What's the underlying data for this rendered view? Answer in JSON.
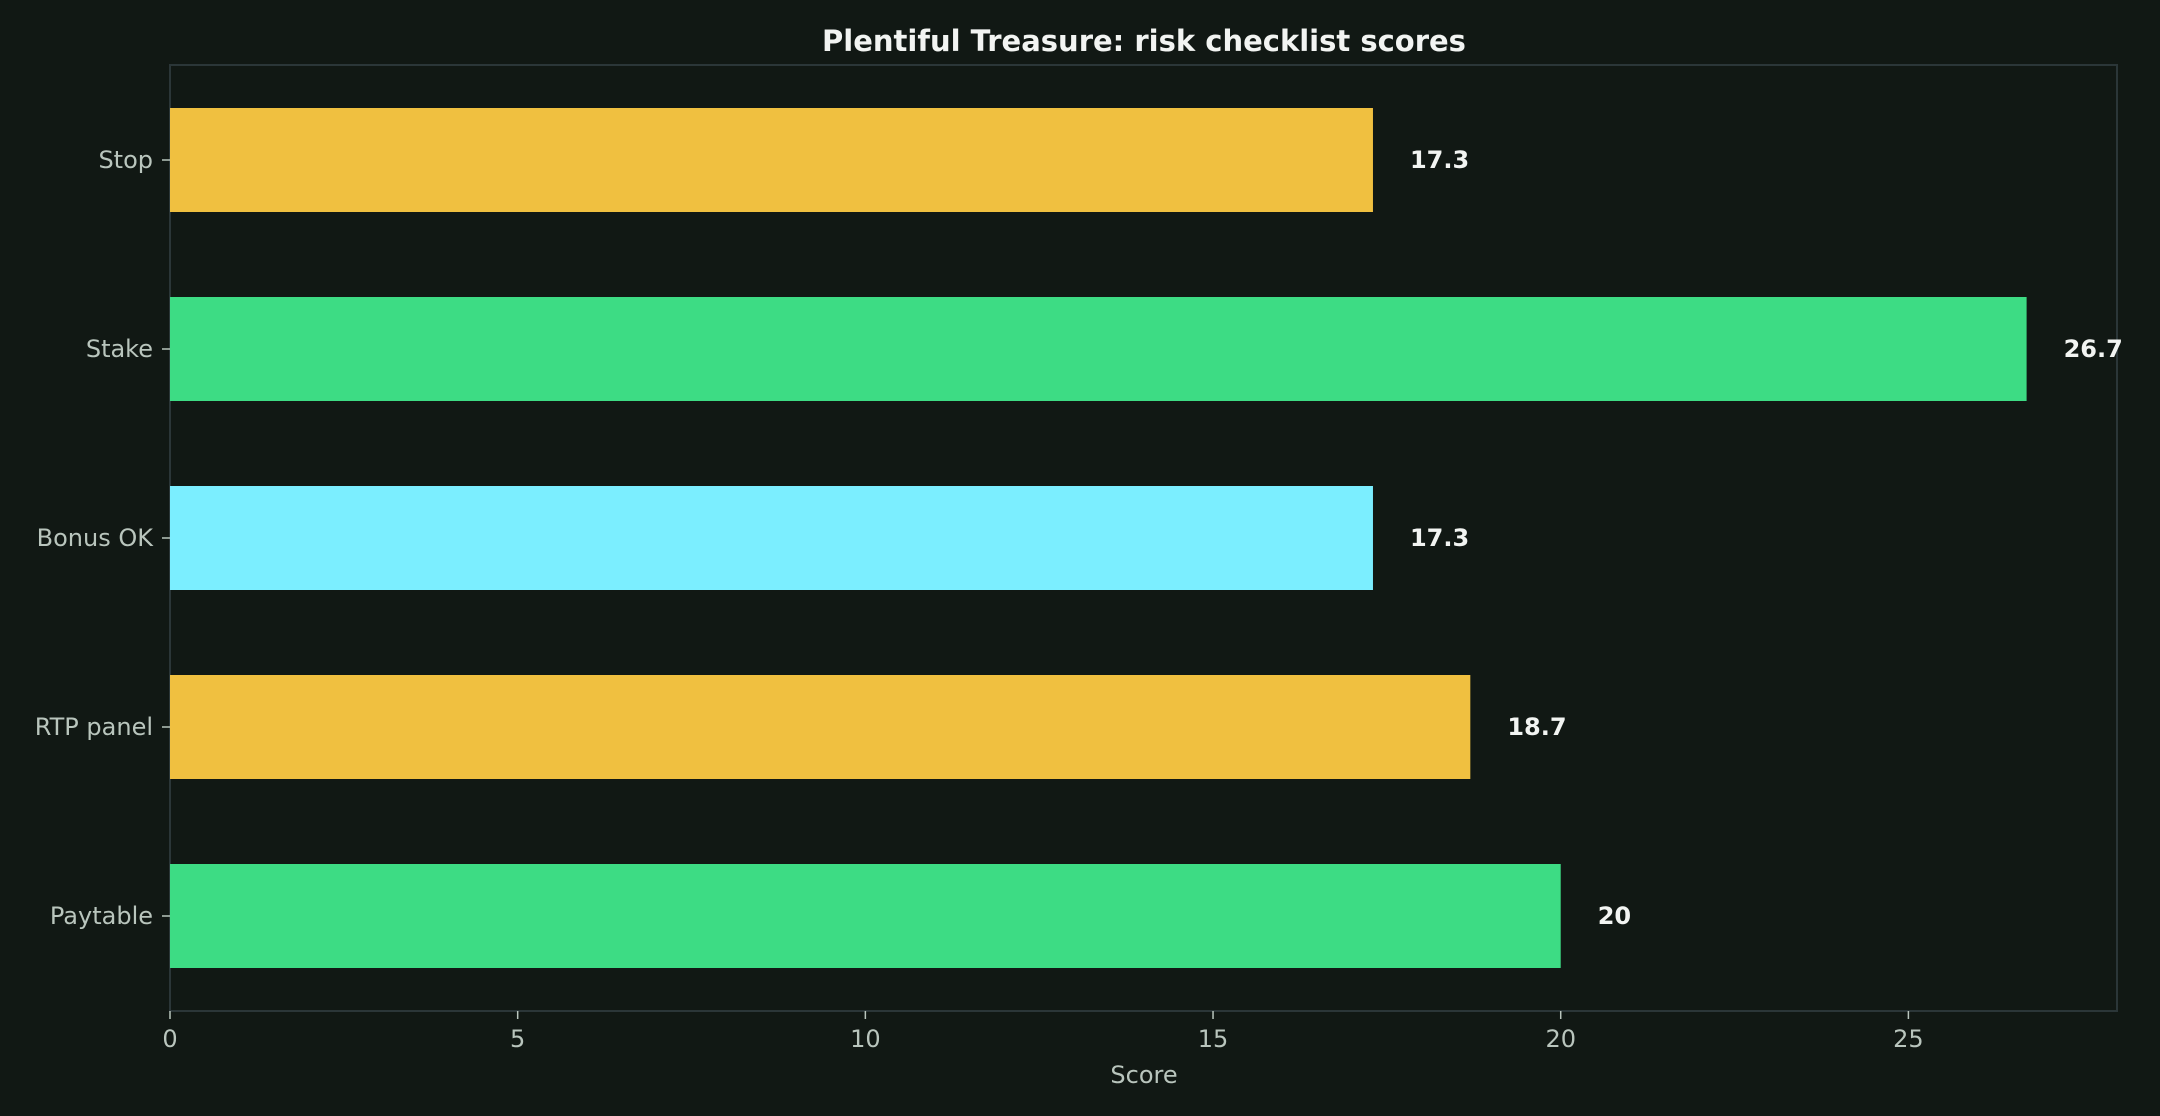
{
  "chart_data": {
    "type": "bar",
    "orientation": "horizontal",
    "title": "Plentiful Treasure: risk checklist scores",
    "xlabel": "Score",
    "ylabel": "",
    "categories": [
      "Stop",
      "Stake",
      "Bonus OK",
      "RTP panel",
      "Paytable"
    ],
    "values": [
      17.3,
      26.7,
      17.3,
      18.7,
      20
    ],
    "value_labels": [
      "17.3",
      "26.7",
      "17.3",
      "18.7",
      "20"
    ],
    "bar_colors": [
      "#f0c040",
      "#3ddc84",
      "#7beeff",
      "#f0c040",
      "#3ddc84"
    ],
    "xlim": [
      0,
      28
    ],
    "xticks": [
      0,
      5,
      10,
      15,
      20,
      25
    ],
    "xtick_labels": [
      "0",
      "5",
      "10",
      "15",
      "20",
      "25"
    ],
    "grid": false,
    "legend": "none"
  },
  "colors": {
    "background": "#111814",
    "axes_frame": "#2b3638",
    "tick_label": "#b9c5bd",
    "title": "#f2f4f2",
    "value_label": "#f2f4f2"
  }
}
